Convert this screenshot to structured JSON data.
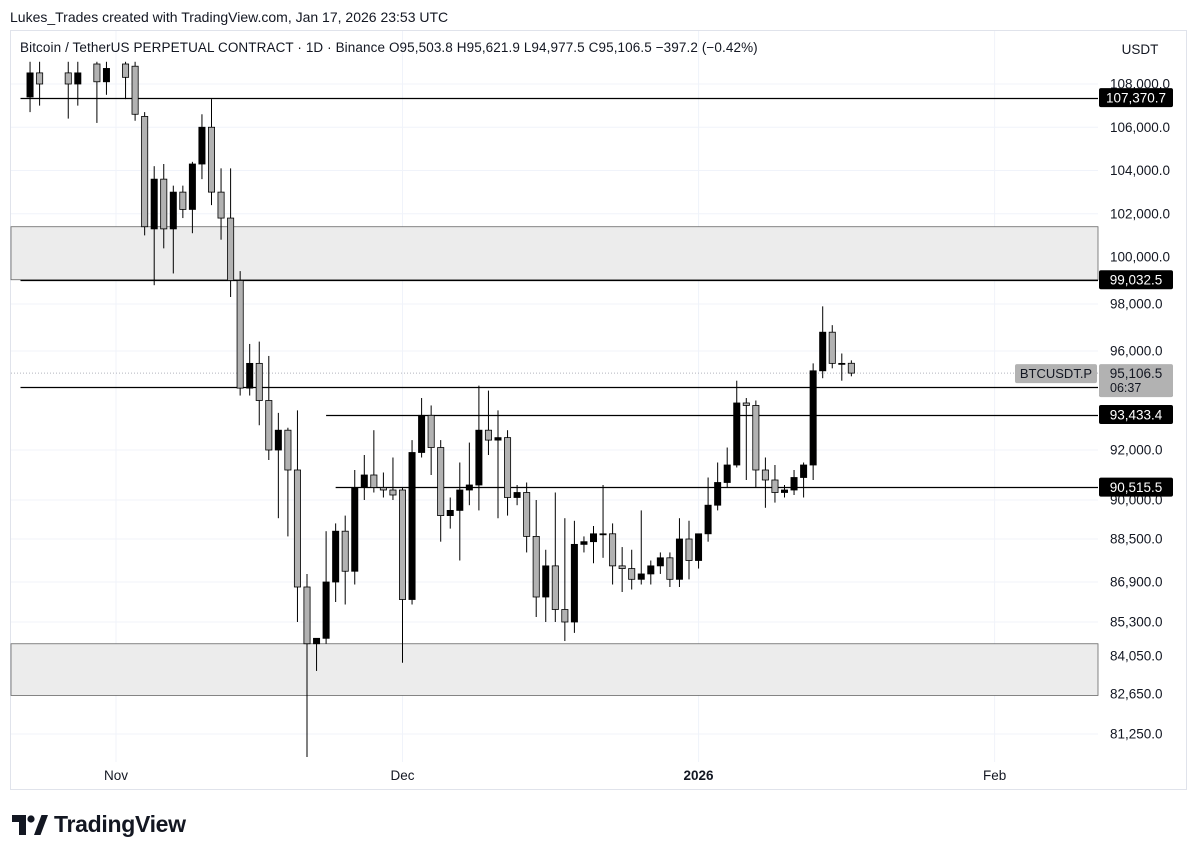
{
  "header": {
    "credit": "Lukes_Trades created with TradingView.com, Jan 17, 2026 23:53 UTC"
  },
  "legend": {
    "symbol": "Bitcoin / TetherUS PERPETUAL CONTRACT · 1D · Binance",
    "open": "O95,503.8",
    "high": "H95,621.9",
    "low": "L94,977.5",
    "close": "C95,106.5",
    "change": "−397.2 (−0.42%)"
  },
  "unit": "USDT",
  "brand": {
    "name": "TradingView"
  },
  "colors": {
    "up": "#000000",
    "down": "#b2b2b2",
    "zone": "#ececec",
    "level": "#000000",
    "grid": "#f0f3fa"
  },
  "chart_data": {
    "type": "candlestick",
    "ylim": [
      80400,
      108900
    ],
    "y_ticks": [
      {
        "value": 108000,
        "label": "108,000.0"
      },
      {
        "value": 106000,
        "label": "106,000.0"
      },
      {
        "value": 104000,
        "label": "104,000.0"
      },
      {
        "value": 102000,
        "label": "102,000.0"
      },
      {
        "value": 100000,
        "label": "100,000.0"
      },
      {
        "value": 98000,
        "label": "98,000.0"
      },
      {
        "value": 96000,
        "label": "96,000.0"
      },
      {
        "value": 92000,
        "label": "92,000.0"
      },
      {
        "value": 90000,
        "label": "90,000.0"
      },
      {
        "value": 88500,
        "label": "88,500.0"
      },
      {
        "value": 86900,
        "label": "86,900.0"
      },
      {
        "value": 85300,
        "label": "85,300.0"
      },
      {
        "value": 84050,
        "label": "84,050.0"
      },
      {
        "value": 82650,
        "label": "82,650.0"
      },
      {
        "value": 81250,
        "label": "81,250.0"
      }
    ],
    "x_ticks": [
      {
        "date": "2025-11-01",
        "label": "Nov",
        "bold": false
      },
      {
        "date": "2025-12-01",
        "label": "Dec",
        "bold": false
      },
      {
        "date": "2026-01-01",
        "label": "2026",
        "bold": true
      },
      {
        "date": "2026-02-01",
        "label": "Feb",
        "bold": false
      }
    ],
    "zones": [
      {
        "from": 99032.5,
        "to": 101400
      },
      {
        "from": 82600,
        "to": 84500
      }
    ],
    "levels": [
      {
        "value": 107370.7,
        "label": "107,370.7",
        "from_date": "2025-10-22"
      },
      {
        "value": 99032.5,
        "label": "99,032.5",
        "from_date": "2025-10-22"
      },
      {
        "value": 94534.7,
        "label": "94,534.7",
        "from_date": "2025-10-22"
      },
      {
        "value": 93433.4,
        "label": "93,433.4",
        "from_date": "2025-11-23"
      },
      {
        "value": 90515.5,
        "label": "90,515.5",
        "from_date": "2025-11-24"
      }
    ],
    "last_price": {
      "value": 95106.5,
      "label": "95,106.5",
      "countdown": "06:37",
      "tag": "BTCUSDT.P"
    },
    "candles": [
      {
        "d": "2025-10-23",
        "o": 107400,
        "h": 109000,
        "l": 106700,
        "c": 108500
      },
      {
        "d": "2025-10-24",
        "o": 108500,
        "h": 109000,
        "l": 107000,
        "c": 108000
      },
      {
        "d": "2025-10-27",
        "o": 108500,
        "h": 109000,
        "l": 106400,
        "c": 108000
      },
      {
        "d": "2025-10-28",
        "o": 108000,
        "h": 109000,
        "l": 107000,
        "c": 108500
      },
      {
        "d": "2025-10-30",
        "o": 108900,
        "h": 109000,
        "l": 106200,
        "c": 108100
      },
      {
        "d": "2025-10-31",
        "o": 108100,
        "h": 109000,
        "l": 107500,
        "c": 108700
      },
      {
        "d": "2025-11-02",
        "o": 108900,
        "h": 109000,
        "l": 107300,
        "c": 108300
      },
      {
        "d": "2025-11-03",
        "o": 108800,
        "h": 109000,
        "l": 106300,
        "c": 106600
      },
      {
        "d": "2025-11-04",
        "o": 106500,
        "h": 106700,
        "l": 101000,
        "c": 101400
      },
      {
        "d": "2025-11-05",
        "o": 101300,
        "h": 104200,
        "l": 98800,
        "c": 103600
      },
      {
        "d": "2025-11-06",
        "o": 103600,
        "h": 104300,
        "l": 100400,
        "c": 101300
      },
      {
        "d": "2025-11-07",
        "o": 101300,
        "h": 103300,
        "l": 99300,
        "c": 103000
      },
      {
        "d": "2025-11-08",
        "o": 103000,
        "h": 103300,
        "l": 101800,
        "c": 102200
      },
      {
        "d": "2025-11-09",
        "o": 102200,
        "h": 104400,
        "l": 101100,
        "c": 104300
      },
      {
        "d": "2025-11-10",
        "o": 104300,
        "h": 106600,
        "l": 103600,
        "c": 106000
      },
      {
        "d": "2025-11-11",
        "o": 106000,
        "h": 107300,
        "l": 102400,
        "c": 103000
      },
      {
        "d": "2025-11-12",
        "o": 103000,
        "h": 104100,
        "l": 100800,
        "c": 101800
      },
      {
        "d": "2025-11-13",
        "o": 101800,
        "h": 104100,
        "l": 98300,
        "c": 99000
      },
      {
        "d": "2025-11-14",
        "o": 99000,
        "h": 99400,
        "l": 94200,
        "c": 94500
      },
      {
        "d": "2025-11-15",
        "o": 94500,
        "h": 96300,
        "l": 94200,
        "c": 95500
      },
      {
        "d": "2025-11-16",
        "o": 95500,
        "h": 96400,
        "l": 93000,
        "c": 94000
      },
      {
        "d": "2025-11-17",
        "o": 94000,
        "h": 95800,
        "l": 91600,
        "c": 92000
      },
      {
        "d": "2025-11-18",
        "o": 92000,
        "h": 93500,
        "l": 89300,
        "c": 92800
      },
      {
        "d": "2025-11-19",
        "o": 92800,
        "h": 92900,
        "l": 88600,
        "c": 91200
      },
      {
        "d": "2025-11-20",
        "o": 91200,
        "h": 93600,
        "l": 85300,
        "c": 86700
      },
      {
        "d": "2025-11-21",
        "o": 86700,
        "h": 87200,
        "l": 80500,
        "c": 84500
      },
      {
        "d": "2025-11-22",
        "o": 84500,
        "h": 84600,
        "l": 83500,
        "c": 84700
      },
      {
        "d": "2025-11-23",
        "o": 84700,
        "h": 88800,
        "l": 84500,
        "c": 86900
      },
      {
        "d": "2025-11-24",
        "o": 86900,
        "h": 89100,
        "l": 86100,
        "c": 88800
      },
      {
        "d": "2025-11-25",
        "o": 88800,
        "h": 89400,
        "l": 86000,
        "c": 87300
      },
      {
        "d": "2025-11-26",
        "o": 87300,
        "h": 91200,
        "l": 86800,
        "c": 90500
      },
      {
        "d": "2025-11-27",
        "o": 90500,
        "h": 91800,
        "l": 90000,
        "c": 91000
      },
      {
        "d": "2025-11-28",
        "o": 91000,
        "h": 92800,
        "l": 90300,
        "c": 90500
      },
      {
        "d": "2025-11-29",
        "o": 90500,
        "h": 91100,
        "l": 90100,
        "c": 90400
      },
      {
        "d": "2025-11-30",
        "o": 90400,
        "h": 91700,
        "l": 90000,
        "c": 90200
      },
      {
        "d": "2025-12-01",
        "o": 90400,
        "h": 90500,
        "l": 83800,
        "c": 86200
      },
      {
        "d": "2025-12-02",
        "o": 86200,
        "h": 92400,
        "l": 86000,
        "c": 91900
      },
      {
        "d": "2025-12-03",
        "o": 91900,
        "h": 94100,
        "l": 91700,
        "c": 93400
      },
      {
        "d": "2025-12-04",
        "o": 93400,
        "h": 93800,
        "l": 91000,
        "c": 92100
      },
      {
        "d": "2025-12-05",
        "o": 92100,
        "h": 92400,
        "l": 88400,
        "c": 89400
      },
      {
        "d": "2025-12-06",
        "o": 89400,
        "h": 90100,
        "l": 88900,
        "c": 89600
      },
      {
        "d": "2025-12-07",
        "o": 89600,
        "h": 91500,
        "l": 87700,
        "c": 90400
      },
      {
        "d": "2025-12-08",
        "o": 90400,
        "h": 92300,
        "l": 89800,
        "c": 90600
      },
      {
        "d": "2025-12-09",
        "o": 90600,
        "h": 94600,
        "l": 89600,
        "c": 92800
      },
      {
        "d": "2025-12-10",
        "o": 92800,
        "h": 94400,
        "l": 91800,
        "c": 92400
      },
      {
        "d": "2025-12-11",
        "o": 92400,
        "h": 93600,
        "l": 89300,
        "c": 92500
      },
      {
        "d": "2025-12-12",
        "o": 92500,
        "h": 92800,
        "l": 89400,
        "c": 90100
      },
      {
        "d": "2025-12-13",
        "o": 90100,
        "h": 90600,
        "l": 89800,
        "c": 90300
      },
      {
        "d": "2025-12-14",
        "o": 90300,
        "h": 90700,
        "l": 88000,
        "c": 88600
      },
      {
        "d": "2025-12-15",
        "o": 88600,
        "h": 90000,
        "l": 85500,
        "c": 86300
      },
      {
        "d": "2025-12-16",
        "o": 86300,
        "h": 88100,
        "l": 85300,
        "c": 87500
      },
      {
        "d": "2025-12-17",
        "o": 87500,
        "h": 90300,
        "l": 85300,
        "c": 85800
      },
      {
        "d": "2025-12-18",
        "o": 85800,
        "h": 89300,
        "l": 84600,
        "c": 85300
      },
      {
        "d": "2025-12-19",
        "o": 85300,
        "h": 89200,
        "l": 84900,
        "c": 88300
      },
      {
        "d": "2025-12-20",
        "o": 88300,
        "h": 88600,
        "l": 88000,
        "c": 88400
      },
      {
        "d": "2025-12-21",
        "o": 88400,
        "h": 89000,
        "l": 87600,
        "c": 88700
      },
      {
        "d": "2025-12-22",
        "o": 88700,
        "h": 90600,
        "l": 87800,
        "c": 88700
      },
      {
        "d": "2025-12-23",
        "o": 88700,
        "h": 89100,
        "l": 86800,
        "c": 87500
      },
      {
        "d": "2025-12-24",
        "o": 87500,
        "h": 88200,
        "l": 86500,
        "c": 87400
      },
      {
        "d": "2025-12-25",
        "o": 87400,
        "h": 88100,
        "l": 86600,
        "c": 87000
      },
      {
        "d": "2025-12-26",
        "o": 87000,
        "h": 89600,
        "l": 86800,
        "c": 87200
      },
      {
        "d": "2025-12-27",
        "o": 87200,
        "h": 87700,
        "l": 86800,
        "c": 87500
      },
      {
        "d": "2025-12-28",
        "o": 87500,
        "h": 88000,
        "l": 87200,
        "c": 87800
      },
      {
        "d": "2025-12-29",
        "o": 87800,
        "h": 88000,
        "l": 86700,
        "c": 87000
      },
      {
        "d": "2025-12-30",
        "o": 87000,
        "h": 89300,
        "l": 86700,
        "c": 88500
      },
      {
        "d": "2025-12-31",
        "o": 88500,
        "h": 89200,
        "l": 87000,
        "c": 87700
      },
      {
        "d": "2026-01-01",
        "o": 87700,
        "h": 88600,
        "l": 87400,
        "c": 88700
      },
      {
        "d": "2026-01-02",
        "o": 88700,
        "h": 90900,
        "l": 88400,
        "c": 89800
      },
      {
        "d": "2026-01-03",
        "o": 89800,
        "h": 91500,
        "l": 89600,
        "c": 90700
      },
      {
        "d": "2026-01-04",
        "o": 90700,
        "h": 92100,
        "l": 90500,
        "c": 91400
      },
      {
        "d": "2026-01-05",
        "o": 91400,
        "h": 94800,
        "l": 91300,
        "c": 93900
      },
      {
        "d": "2026-01-06",
        "o": 93900,
        "h": 94100,
        "l": 90800,
        "c": 93800
      },
      {
        "d": "2026-01-07",
        "o": 93800,
        "h": 94000,
        "l": 90500,
        "c": 91200
      },
      {
        "d": "2026-01-08",
        "o": 91200,
        "h": 91700,
        "l": 89700,
        "c": 90800
      },
      {
        "d": "2026-01-09",
        "o": 90800,
        "h": 91400,
        "l": 89900,
        "c": 90300
      },
      {
        "d": "2026-01-10",
        "o": 90300,
        "h": 90600,
        "l": 90100,
        "c": 90400
      },
      {
        "d": "2026-01-11",
        "o": 90400,
        "h": 91200,
        "l": 90200,
        "c": 90900
      },
      {
        "d": "2026-01-12",
        "o": 90900,
        "h": 91500,
        "l": 90100,
        "c": 91400
      },
      {
        "d": "2026-01-13",
        "o": 91400,
        "h": 95500,
        "l": 90800,
        "c": 95200
      },
      {
        "d": "2026-01-14",
        "o": 95200,
        "h": 97900,
        "l": 94900,
        "c": 96800
      },
      {
        "d": "2026-01-15",
        "o": 96800,
        "h": 97100,
        "l": 95300,
        "c": 95500
      },
      {
        "d": "2026-01-16",
        "o": 95500,
        "h": 95900,
        "l": 94800,
        "c": 95500
      },
      {
        "d": "2026-01-17",
        "o": 95503.8,
        "h": 95621.9,
        "l": 94977.5,
        "c": 95106.5
      }
    ]
  }
}
